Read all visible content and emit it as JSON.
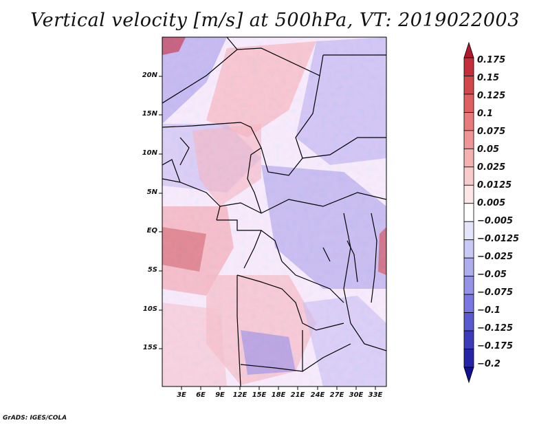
{
  "title": "Vertical velocity [m/s] at 500hPa, VT: 2019022003",
  "footer": "GrADS: IGES/COLA",
  "map": {
    "lat_labels": [
      "20N",
      "15N",
      "10N",
      "5N",
      "EQ",
      "5S",
      "10S",
      "15S"
    ],
    "lon_labels": [
      "3E",
      "6E",
      "9E",
      "12E",
      "15E",
      "18E",
      "21E",
      "24E",
      "27E",
      "30E",
      "33E"
    ]
  },
  "colorbar": {
    "labels": [
      "0.175",
      "0.15",
      "0.125",
      "0.1",
      "0.075",
      "0.05",
      "0.025",
      "0.0125",
      "0.005",
      "−0.005",
      "−0.0125",
      "−0.025",
      "−0.05",
      "−0.075",
      "−0.1",
      "−0.125",
      "−0.175",
      "−0.2"
    ],
    "colors": [
      "#b2182b",
      "#c4303a",
      "#d2474a",
      "#de6060",
      "#e67b7b",
      "#ef9595",
      "#f5b0b0",
      "#f9cccc",
      "#fce6e6",
      "#ffffff",
      "#e4e4fb",
      "#c9c9f5",
      "#aeaeef",
      "#9393e8",
      "#7878e0",
      "#5a5ad0",
      "#3c3cbb",
      "#2525a5",
      "#121290"
    ]
  }
}
